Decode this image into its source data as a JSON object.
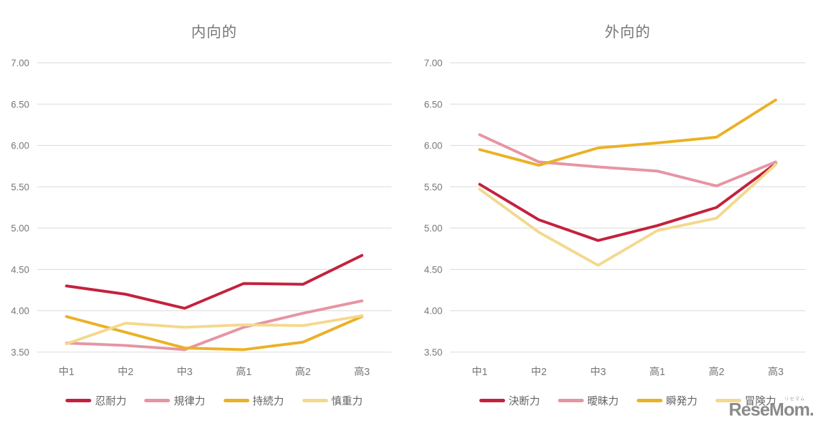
{
  "colors": {
    "red": "#c4213e",
    "pink": "#e695a3",
    "gold": "#ebb126",
    "light_yellow": "#f3d98e",
    "grid": "#d9d9d9",
    "axis_text": "#767676",
    "legend_text": "#636363",
    "title_text": "#767676",
    "watermark": "#8b8b8b"
  },
  "watermark": {
    "text": "ReseMom.",
    "furigana": "リセマム"
  },
  "chart_data": [
    {
      "type": "line",
      "title": "内向的",
      "categories": [
        "中1",
        "中2",
        "中3",
        "高1",
        "高2",
        "高3"
      ],
      "xlabel": "",
      "ylabel": "",
      "ylim": [
        3.5,
        7.0
      ],
      "ytick_step": 0.5,
      "ytick_labels": [
        "7.00",
        "6.50",
        "6.00",
        "5.50",
        "5.00",
        "4.50",
        "4.00",
        "3.50"
      ],
      "grid": true,
      "legend_position": "bottom",
      "series": [
        {
          "name": "忍耐力",
          "key": "endurance",
          "color_key": "red",
          "values": [
            4.3,
            4.2,
            4.03,
            4.33,
            4.32,
            4.67
          ]
        },
        {
          "name": "規律力",
          "key": "discipline",
          "color_key": "pink",
          "values": [
            3.61,
            3.58,
            3.53,
            3.8,
            3.97,
            4.12
          ]
        },
        {
          "name": "持続力",
          "key": "persistence",
          "color_key": "gold",
          "values": [
            3.93,
            3.74,
            3.55,
            3.53,
            3.62,
            3.93
          ]
        },
        {
          "name": "慎重力",
          "key": "caution",
          "color_key": "light_yellow",
          "values": [
            3.6,
            3.85,
            3.8,
            3.83,
            3.82,
            3.94
          ]
        }
      ]
    },
    {
      "type": "line",
      "title": "外向的",
      "categories": [
        "中1",
        "中2",
        "中3",
        "高1",
        "高2",
        "高3"
      ],
      "xlabel": "",
      "ylabel": "",
      "ylim": [
        3.5,
        7.0
      ],
      "ytick_step": 0.5,
      "ytick_labels": [
        "7.00",
        "6.50",
        "6.00",
        "5.50",
        "5.00",
        "4.50",
        "4.00",
        "3.50"
      ],
      "grid": true,
      "legend_position": "bottom",
      "series": [
        {
          "name": "決断力",
          "key": "decisiveness",
          "color_key": "red",
          "values": [
            5.53,
            5.1,
            4.85,
            5.03,
            5.25,
            5.78
          ]
        },
        {
          "name": "曖昧力",
          "key": "ambiguity",
          "color_key": "pink",
          "values": [
            6.13,
            5.8,
            5.74,
            5.69,
            5.51,
            5.8
          ]
        },
        {
          "name": "瞬発力",
          "key": "quickness",
          "color_key": "gold",
          "values": [
            5.95,
            5.76,
            5.97,
            6.03,
            6.1,
            6.55
          ]
        },
        {
          "name": "冒険力",
          "key": "adventure",
          "color_key": "light_yellow",
          "values": [
            5.47,
            4.95,
            4.55,
            4.97,
            5.12,
            5.77
          ]
        }
      ]
    }
  ]
}
